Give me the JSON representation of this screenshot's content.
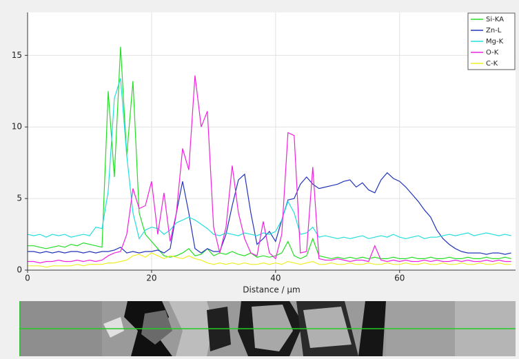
{
  "chart_data": {
    "type": "line",
    "x_label": "Distance / µm",
    "x": [
      0,
      1,
      2,
      3,
      4,
      5,
      6,
      7,
      8,
      9,
      10,
      11,
      12,
      13,
      14,
      15,
      16,
      17,
      18,
      19,
      20,
      21,
      22,
      23,
      24,
      25,
      26,
      27,
      28,
      29,
      30,
      31,
      32,
      33,
      34,
      35,
      36,
      37,
      38,
      39,
      40,
      41,
      42,
      43,
      44,
      45,
      46,
      47,
      48,
      49,
      50,
      51,
      52,
      53,
      54,
      55,
      56,
      57,
      58,
      59,
      60,
      61,
      62,
      63,
      64,
      65,
      66,
      67,
      68,
      69,
      70,
      71,
      72,
      73,
      74,
      75,
      76,
      77,
      78
    ],
    "series": [
      {
        "name": "Si-KA",
        "color": "#22dd22",
        "values": [
          1.7,
          1.7,
          1.6,
          1.5,
          1.6,
          1.7,
          1.6,
          1.8,
          1.7,
          1.9,
          1.8,
          1.7,
          1.6,
          12.5,
          6.5,
          15.6,
          8,
          13.2,
          4,
          2.5,
          2,
          1.5,
          1,
          0.9,
          1,
          1.2,
          1.5,
          1,
          1.1,
          1.5,
          1,
          1.2,
          1.1,
          1.3,
          1.1,
          1,
          1.2,
          0.9,
          1,
          0.9,
          1,
          1.2,
          2,
          1,
          0.8,
          1,
          2.2,
          1,
          0.9,
          0.8,
          0.9,
          0.8,
          0.9,
          0.8,
          0.9,
          0.8,
          0.9,
          0.8,
          0.8,
          0.9,
          0.8,
          0.8,
          0.9,
          0.8,
          0.8,
          0.9,
          0.8,
          0.8,
          0.9,
          0.8,
          0.8,
          0.9,
          0.8,
          0.8,
          0.9,
          0.8,
          0.8,
          0.9,
          0.8
        ]
      },
      {
        "name": "Zn-L",
        "color": "#2233bb",
        "values": [
          1.3,
          1.3,
          1.2,
          1.3,
          1.2,
          1.3,
          1.2,
          1.3,
          1.3,
          1.2,
          1.3,
          1.2,
          1.3,
          1.3,
          1.4,
          1.6,
          1.2,
          1.3,
          1.2,
          1.3,
          1.3,
          1.4,
          1.2,
          1.5,
          4,
          6.2,
          4,
          1.5,
          1.2,
          1.5,
          1.3,
          1.3,
          2.5,
          4.5,
          6.3,
          6.7,
          4,
          1.8,
          2.2,
          2.7,
          2,
          3.5,
          4.9,
          5,
          6,
          6.5,
          6,
          5.7,
          5.8,
          5.9,
          6,
          6.2,
          6.3,
          5.8,
          6.1,
          5.6,
          5.4,
          6.3,
          6.8,
          6.4,
          6.2,
          5.8,
          5.3,
          4.8,
          4.2,
          3.7,
          2.8,
          2.2,
          1.8,
          1.5,
          1.3,
          1.2,
          1.2,
          1.2,
          1.1,
          1.2,
          1.2,
          1.1,
          1.2
        ]
      },
      {
        "name": "Mg-K",
        "color": "#22dddd",
        "values": [
          2.5,
          2.4,
          2.5,
          2.3,
          2.5,
          2.4,
          2.5,
          2.3,
          2.4,
          2.5,
          2.4,
          3,
          2.9,
          5.5,
          12,
          13.4,
          8,
          4,
          2.2,
          2.8,
          3,
          2.9,
          2.5,
          2.8,
          3.3,
          3.5,
          3.7,
          3.5,
          3.2,
          2.9,
          2.5,
          2.4,
          2.6,
          2.5,
          2.4,
          2.6,
          2.5,
          2.4,
          2.6,
          2.5,
          2.7,
          3.5,
          4.8,
          4,
          2.5,
          2.6,
          3,
          2.3,
          2.4,
          2.3,
          2.2,
          2.3,
          2.2,
          2.3,
          2.4,
          2.2,
          2.3,
          2.4,
          2.3,
          2.5,
          2.3,
          2.2,
          2.3,
          2.4,
          2.2,
          2.3,
          2.3,
          2.4,
          2.5,
          2.4,
          2.5,
          2.6,
          2.4,
          2.5,
          2.6,
          2.5,
          2.4,
          2.5,
          2.4
        ]
      },
      {
        "name": "O-K",
        "color": "#ee22dd",
        "values": [
          0.6,
          0.6,
          0.5,
          0.6,
          0.6,
          0.7,
          0.6,
          0.6,
          0.7,
          0.6,
          0.7,
          0.6,
          0.7,
          1,
          1.2,
          1.3,
          2.5,
          5.7,
          4.3,
          4.5,
          6.2,
          2.5,
          5.4,
          2,
          4,
          8.5,
          7,
          13.6,
          10,
          11.1,
          3,
          1.2,
          3,
          7.3,
          4,
          2.2,
          1.2,
          1,
          3.4,
          1.2,
          0.8,
          2.5,
          9.6,
          9.4,
          1.2,
          1.3,
          7.2,
          0.8,
          0.7,
          0.7,
          0.8,
          0.7,
          0.6,
          0.7,
          0.7,
          0.6,
          1.7,
          0.7,
          0.6,
          0.7,
          0.6,
          0.7,
          0.6,
          0.6,
          0.7,
          0.6,
          0.7,
          0.6,
          0.6,
          0.7,
          0.6,
          0.7,
          0.6,
          0.6,
          0.7,
          0.6,
          0.7,
          0.6,
          0.6
        ]
      },
      {
        "name": "C-K",
        "color": "#eeee22",
        "values": [
          0.3,
          0.3,
          0.3,
          0.2,
          0.3,
          0.3,
          0.3,
          0.3,
          0.4,
          0.3,
          0.4,
          0.4,
          0.4,
          0.5,
          0.5,
          0.6,
          0.7,
          1,
          1.1,
          0.9,
          1.2,
          1,
          0.8,
          1,
          0.9,
          0.8,
          1,
          0.8,
          0.7,
          0.5,
          0.4,
          0.5,
          0.4,
          0.5,
          0.4,
          0.5,
          0.4,
          0.4,
          0.5,
          0.4,
          0.5,
          0.4,
          0.6,
          0.5,
          0.4,
          0.5,
          0.6,
          0.4,
          0.4,
          0.5,
          0.4,
          0.4,
          0.5,
          0.4,
          0.4,
          0.5,
          0.4,
          0.4,
          0.5,
          0.4,
          0.4,
          0.5,
          0.4,
          0.4,
          0.5,
          0.4,
          0.4,
          0.5,
          0.4,
          0.4,
          0.5,
          0.4,
          0.4,
          0.5,
          0.4,
          0.4,
          0.5,
          0.4,
          0.4
        ]
      }
    ],
    "xlim": [
      0,
      78.7
    ],
    "ylim": [
      0,
      18
    ],
    "xticks": [
      0,
      20,
      40,
      60
    ],
    "yticks": [
      0,
      5,
      10,
      15
    ],
    "grid": true,
    "legend": "top-right"
  }
}
